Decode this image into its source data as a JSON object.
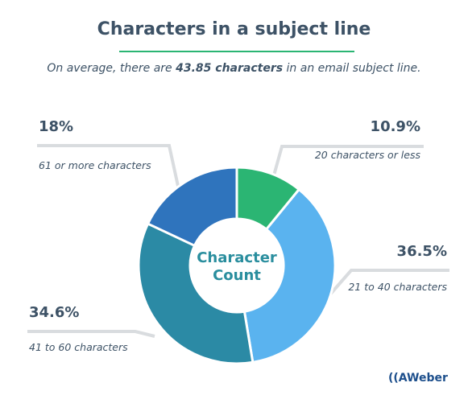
{
  "title": "Characters in a subject line",
  "subtitle": {
    "before": "On average, there are ",
    "highlight": "43.85 characters",
    "after": " in an email subject line."
  },
  "center_label": [
    "Character",
    "Count"
  ],
  "logo_text": "AWeber",
  "colors": {
    "title": "#3d5266",
    "underline": "#2bb573",
    "center_text": "#2a8e9e",
    "leader": "#d9dcdf"
  },
  "chart_data": {
    "type": "pie",
    "variant": "donut",
    "slices": [
      {
        "percent_label": "10.9%",
        "value": 10.9,
        "description": "20 characters or less",
        "color": "#2bb573"
      },
      {
        "percent_label": "36.5%",
        "value": 36.5,
        "description": "21 to 40 characters",
        "color": "#5ab3ef"
      },
      {
        "percent_label": "34.6%",
        "value": 34.6,
        "description": "41 to 60 characters",
        "color": "#2b8aa5"
      },
      {
        "percent_label": "18%",
        "value": 18,
        "description": "61 or more characters",
        "color": "#2f74bd"
      }
    ]
  }
}
